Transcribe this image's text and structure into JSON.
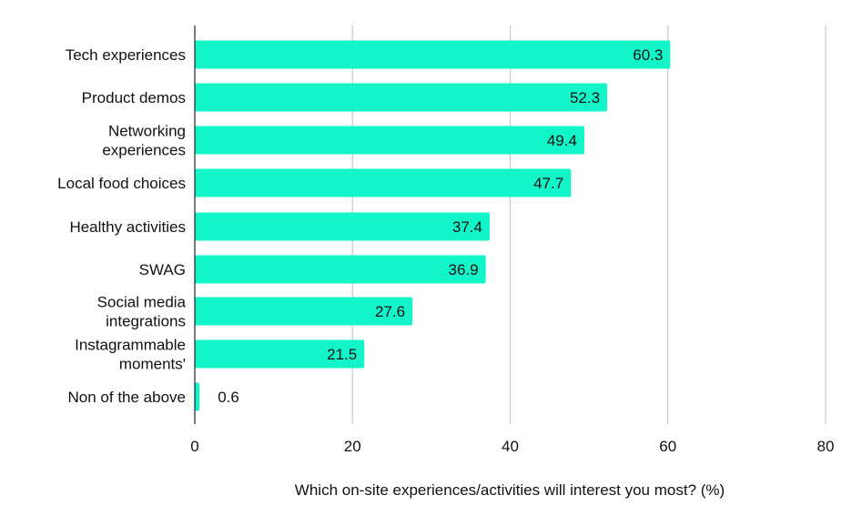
{
  "chart_data": {
    "type": "bar",
    "orientation": "horizontal",
    "title": "",
    "xlabel": "Which on-site experiences/activities will interest you most? (%)",
    "ylabel": "",
    "categories": [
      "Tech experiences",
      "Product demos",
      "Networking experiences",
      "Local food choices",
      "Healthy activities",
      "SWAG",
      "Social media integrations",
      "Instagrammable moments'",
      "Non of the above"
    ],
    "category_lines": [
      [
        "Tech experiences"
      ],
      [
        "Product demos"
      ],
      [
        "Networking",
        "experiences"
      ],
      [
        "Local food choices"
      ],
      [
        "Healthy activities"
      ],
      [
        "SWAG"
      ],
      [
        "Social media",
        "integrations"
      ],
      [
        "Instagrammable",
        "moments'"
      ],
      [
        "Non of the above"
      ]
    ],
    "values": [
      60.3,
      52.3,
      49.4,
      47.7,
      37.4,
      36.9,
      27.6,
      21.5,
      0.6
    ],
    "xlim": [
      0,
      80
    ],
    "xticks": [
      0,
      20,
      40,
      60,
      80
    ],
    "grid": true,
    "legend": "none",
    "bar_color": "#12f5c9",
    "small_label_color": "#12f5c9",
    "gridline_color": "#c8c8c8"
  }
}
